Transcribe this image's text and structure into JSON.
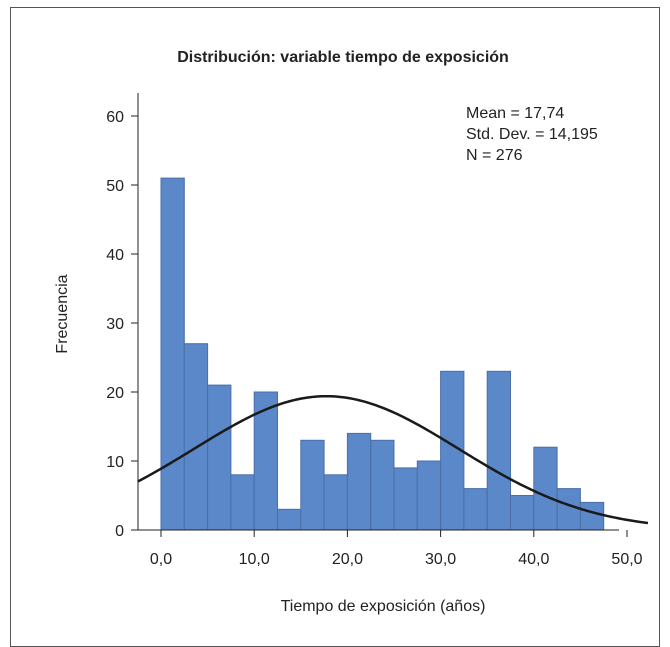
{
  "chart_data": {
    "type": "bar",
    "title": "Distribución: variable tiempo de exposición",
    "xlabel": "Tiempo de exposición (años)",
    "ylabel": "Frecuencia",
    "xlim": [
      -2.5,
      53
    ],
    "ylim": [
      0,
      65
    ],
    "x_ticks": [
      "0,0",
      "10,0",
      "20,0",
      "30,0",
      "40,0",
      "50,0"
    ],
    "x_tick_values": [
      0,
      10,
      20,
      30,
      40,
      50
    ],
    "y_ticks": [
      "0",
      "10",
      "20",
      "30",
      "40",
      "50",
      "60"
    ],
    "y_tick_values": [
      0,
      10,
      20,
      30,
      40,
      50,
      60
    ],
    "bin_edges": [
      0,
      2.5,
      5,
      7.5,
      10,
      12.5,
      15,
      17.5,
      20,
      22.5,
      25,
      27.5,
      30,
      32.5,
      35,
      37.5,
      40,
      42.5,
      45,
      47.5
    ],
    "values": [
      51,
      27,
      21,
      8,
      20,
      3,
      13,
      8,
      14,
      13,
      9,
      10,
      23,
      6,
      23,
      5,
      12,
      6,
      4
    ],
    "bar_color": "#5b88c8",
    "bar_edge_color": "#4a6fa8",
    "normal_curve": {
      "mean": 17.74,
      "std": 14.195,
      "n": 276,
      "bin_width": 2.5,
      "color": "#1a1a1a"
    },
    "stats": {
      "mean_text": "Mean = 17,74",
      "std_text": "Std. Dev. = 14,195",
      "n_text": "N = 276"
    },
    "grid": false
  }
}
